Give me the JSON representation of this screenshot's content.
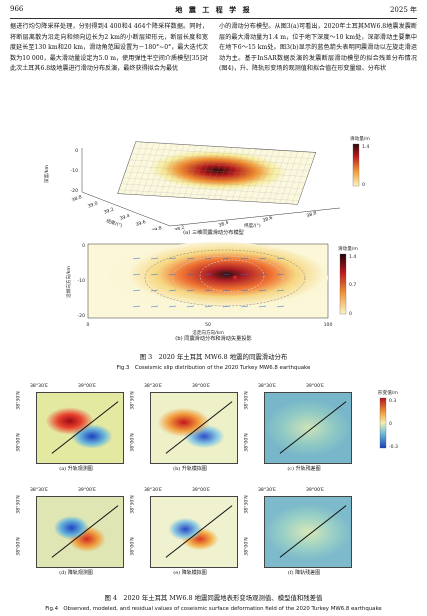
{
  "header": {
    "page_number": "966",
    "journal": "地 震 工 程 学 报",
    "year": "2025 年"
  },
  "body_text": {
    "left": "据进行均匀降采样处理，分别得到4 400和4 464个降采样数据。同时，将断层离散为沿走向和倾向边长为2 km的小断层矩形元，断层长度和宽度延长至130 km和20 km，滑动角范围设置为－180°~0°，最大迭代次数为10 000，最大滑动量设定为5.0 m，使用弹性半空间介质模型[35]对此次土耳其6.8级地震进行滑动分布反演，最终获得拟合为最优",
    "right": "小的滑动分布模型。从图3(a)可看出，2020年土耳其MW6.8地震发震断层的最大滑动量为1.4 m，位于地下深度～10 km处，深部滑动主要集中在地下6～15 km处。图3(b)显示的蓝色箭头表明同震滑动以左旋走滑运动为主。基于InSAR数据反演的发震断层滑动模型的拟合残差分布情况(图4)，升、降轨形变场的观测值和拟合值在形变量级、分布状"
  },
  "figure3": {
    "panel_a": {
      "caption": "(a) 三维同震滑动分布模型",
      "zlabel": "深度/km",
      "z_ticks": [
        "0",
        "-10",
        "-20"
      ],
      "xlabel": "经度/(°)",
      "x_ticks": [
        "38.8",
        "39.0",
        "39.2",
        "39.4",
        "39.6",
        "39.8"
      ],
      "ylabel": "纬度/(°)",
      "y_ticks": [
        "38.2",
        "38.4",
        "38.6",
        "38.8"
      ],
      "colorbar_title": "滑动量/m",
      "colorbar_ticks": [
        "1.4",
        "0"
      ]
    },
    "panel_b": {
      "caption": "(b) 同震滑动分布和滑动矢量投影",
      "ylabel": "沿倾向方向/km",
      "y_ticks": [
        "0",
        "-10",
        "-20"
      ],
      "xlabel": "沿走向方向/km",
      "x_ticks": [
        "0",
        "50",
        "100"
      ],
      "colorbar_title": "滑动量/m",
      "colorbar_ticks": [
        "1.4",
        "0.7",
        "0"
      ]
    },
    "caption_cn": "图 3　2020 年土耳其 MW6.8 地震的同震滑动分布",
    "caption_en": "Fig.3　Coseismic slip distribution of the 2020 Turkey MW6.8 earthquake"
  },
  "figure4": {
    "lon_labels": [
      "38°30′E",
      "39°00′E"
    ],
    "lat_labels": [
      "38°30′N",
      "38°00′N"
    ],
    "colorbar_title": "形变值/m",
    "colorbar_ticks": [
      "0.3",
      "0",
      "-0.3"
    ],
    "panels": [
      {
        "caption": "(a) 升轨观测图"
      },
      {
        "caption": "(b) 升轨模拟图"
      },
      {
        "caption": "(c) 升轨残差图"
      },
      {
        "caption": "(d) 降轨观测图"
      },
      {
        "caption": "(e) 降轨模拟图"
      },
      {
        "caption": "(f) 降轨残差图"
      }
    ],
    "caption_cn": "图 4　2020 年土耳其 MW6.8 地震同震地表形变场观测值、模型值和残差值",
    "caption_en": "Fig.4　Observed, modeled, and residual values of coseismic surface deformation field of the 2020 Turkey MW6.8 earthquake"
  },
  "colors": {
    "slip_low": "#f7f1a0",
    "slip_mid": "#e2491f",
    "slip_high": "#2a0a0a",
    "defo_pos": "#c1121f",
    "defo_neg": "#1d4ed8"
  }
}
